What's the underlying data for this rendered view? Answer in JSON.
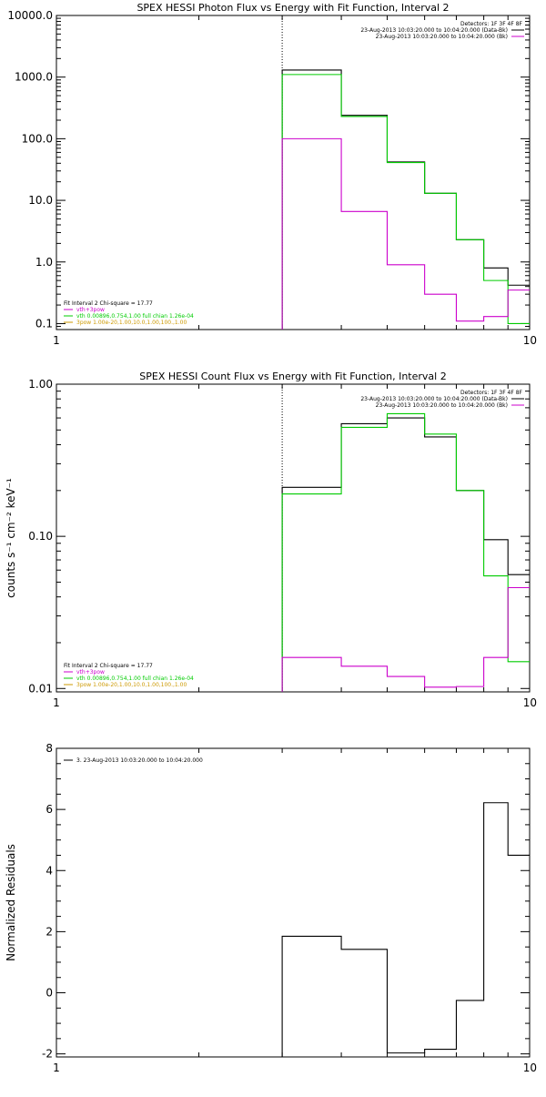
{
  "chart_data": [
    {
      "type": "line",
      "title": "SPEX HESSI Photon Flux vs Energy with Fit Function, Interval 2",
      "ylabel": "",
      "xlim": [
        1,
        10
      ],
      "ylim": [
        0.08,
        10000
      ],
      "xscale": "log",
      "yscale": "log",
      "x_ticks": [
        {
          "v": 1,
          "label": "1"
        },
        {
          "v": 10,
          "label": "10"
        }
      ],
      "y_ticks": [
        {
          "v": 0.1,
          "label": "0.1"
        },
        {
          "v": 1,
          "label": "1.0"
        },
        {
          "v": 10,
          "label": "10.0"
        },
        {
          "v": 100,
          "label": "100.0"
        },
        {
          "v": 1000,
          "label": "1000.0"
        },
        {
          "v": 10000,
          "label": "10000.0"
        }
      ],
      "vline_x": 3,
      "legend_top": {
        "position": "top-right",
        "lines": [
          {
            "text": "Detectors: 1F 3F 4F 8F",
            "color": ""
          },
          {
            "text": "23-Aug-2013 10:03:20.000 to 10:04:20.000 (Data-Bk)",
            "color": "#000000"
          },
          {
            "text": "23-Aug-2013 10:03:20.000 to 10:04:20.000 (Bk)",
            "color": "#cc00cc"
          }
        ]
      },
      "legend_bottom": {
        "position": "bottom-left",
        "lines": [
          {
            "text": "Fit Interval 2   Chi-square = 17.77",
            "color": ""
          },
          {
            "text": "vth+3pow",
            "color": "#cc00cc"
          },
          {
            "text": "vth 0.00896,0.754,1.00   full chian 1.26e-04",
            "color": "#00cc00"
          },
          {
            "text": "3pow 1.00e-20,1.00,10.0,1.00,100.,1.00",
            "color": "#cc9900"
          }
        ]
      },
      "series": [
        {
          "color": "#000000",
          "edges": [
            3,
            4,
            5,
            6,
            7,
            8,
            9,
            10
          ],
          "values": [
            1300,
            240,
            42,
            13,
            2.3,
            0.8,
            0.42
          ]
        },
        {
          "color": "#00cc00",
          "edges": [
            3,
            4,
            5,
            6,
            7,
            8,
            9,
            10
          ],
          "values": [
            1100,
            230,
            41,
            13,
            2.3,
            0.5,
            0.1
          ]
        },
        {
          "color": "#cc00cc",
          "edges": [
            3,
            4,
            5,
            6,
            7,
            8,
            9,
            10
          ],
          "values": [
            100,
            6.6,
            0.9,
            0.3,
            0.11,
            0.13,
            0.35
          ]
        }
      ]
    },
    {
      "type": "line",
      "title": "SPEX HESSI Count Flux vs Energy with Fit Function, Interval 2",
      "ylabel": "counts s⁻¹ cm⁻² keV⁻¹",
      "xlim": [
        1,
        10
      ],
      "ylim": [
        0.0095,
        1.0
      ],
      "xscale": "log",
      "yscale": "log",
      "x_ticks": [
        {
          "v": 1,
          "label": "1"
        },
        {
          "v": 10,
          "label": "10"
        }
      ],
      "y_ticks": [
        {
          "v": 0.01,
          "label": "0.01"
        },
        {
          "v": 0.1,
          "label": "0.10"
        },
        {
          "v": 1,
          "label": "1.00"
        }
      ],
      "vline_x": 3,
      "legend_top": {
        "position": "top-right",
        "lines": [
          {
            "text": "Detectors: 1F 3F 4F 8F",
            "color": ""
          },
          {
            "text": "23-Aug-2013 10:03:20.000 to 10:04:20.000 (Data-Bk)",
            "color": "#000000"
          },
          {
            "text": "23-Aug-2013 10:03:20.000 to 10:04:20.000 (Bk)",
            "color": "#cc00cc"
          }
        ]
      },
      "legend_bottom": {
        "position": "bottom-left",
        "lines": [
          {
            "text": "Fit Interval 2   Chi-square = 17.77",
            "color": ""
          },
          {
            "text": "vth+3pow",
            "color": "#cc00cc"
          },
          {
            "text": "vth 0.00896,0.754,1.00   full chian 1.26e-04",
            "color": "#00cc00"
          },
          {
            "text": "3pow 1.00e-20,1.00,10.0,1.00,100.,1.00",
            "color": "#cc9900"
          }
        ]
      },
      "series": [
        {
          "color": "#000000",
          "edges": [
            3,
            4,
            5,
            6,
            7,
            8,
            9,
            10
          ],
          "values": [
            0.21,
            0.55,
            0.6,
            0.45,
            0.2,
            0.095,
            0.056
          ]
        },
        {
          "color": "#00cc00",
          "edges": [
            3,
            4,
            5,
            6,
            7,
            8,
            9,
            10
          ],
          "values": [
            0.19,
            0.52,
            0.64,
            0.47,
            0.2,
            0.055,
            0.015
          ]
        },
        {
          "color": "#cc00cc",
          "edges": [
            3,
            4,
            5,
            6,
            7,
            8,
            9,
            10
          ],
          "values": [
            0.016,
            0.014,
            0.012,
            0.0102,
            0.0103,
            0.016,
            0.046
          ]
        }
      ]
    },
    {
      "type": "line",
      "title": "",
      "ylabel": "Normalized Residuals",
      "xlim": [
        1,
        10
      ],
      "ylim": [
        -2.1,
        8
      ],
      "xscale": "log",
      "yscale": "linear",
      "x_ticks": [
        {
          "v": 1,
          "label": "1"
        },
        {
          "v": 10,
          "label": "10"
        }
      ],
      "y_ticks": [
        {
          "v": -2,
          "label": "-2"
        },
        {
          "v": 0,
          "label": "0"
        },
        {
          "v": 2,
          "label": "2"
        },
        {
          "v": 4,
          "label": "4"
        },
        {
          "v": 6,
          "label": "6"
        },
        {
          "v": 8,
          "label": "8"
        }
      ],
      "legend_top": {
        "position": "top-left",
        "lines": [
          {
            "text": "3. 23-Aug-2013 10:03:20.000 to 10:04:20.000",
            "color": "#000000"
          }
        ]
      },
      "series": [
        {
          "color": "#000000",
          "edges": [
            3,
            4,
            5,
            6,
            7,
            8,
            9,
            10
          ],
          "values": [
            1.85,
            1.42,
            -1.97,
            -1.85,
            -0.25,
            6.22,
            4.5
          ]
        }
      ]
    }
  ]
}
